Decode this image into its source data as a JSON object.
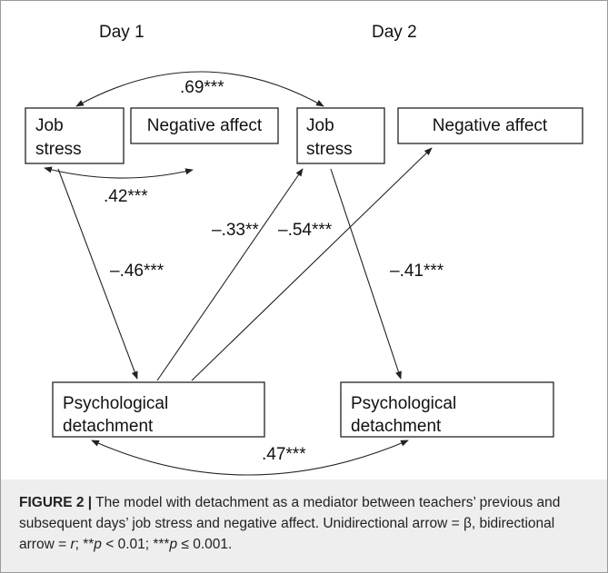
{
  "days": [
    "Day 1",
    "Day 2"
  ],
  "nodes": [
    {
      "lines": [
        "Job",
        "stress"
      ]
    },
    {
      "lines": [
        "Negative affect"
      ]
    },
    {
      "lines": [
        "Job",
        "stress"
      ]
    },
    {
      "lines": [
        "Negative affect"
      ]
    },
    {
      "lines": [
        "Psychological",
        "detachment"
      ]
    },
    {
      "lines": [
        "Psychological",
        "detachment"
      ]
    }
  ],
  "edges": [
    ".69***",
    ".42***",
    "–.46***",
    "–.33**",
    "–.54***",
    "–.41***",
    ".47***"
  ],
  "caption": {
    "runs": [
      "FIGURE 2 |",
      " The model with detachment as a mediator between teachers’ previous and subsequent days’ job stress and negative affect. Unidirectional arrow = β, bidirectional arrow = ",
      "r",
      "; **",
      "p",
      " < 0.01; ***",
      "p",
      " ≤ 0.001."
    ]
  }
}
